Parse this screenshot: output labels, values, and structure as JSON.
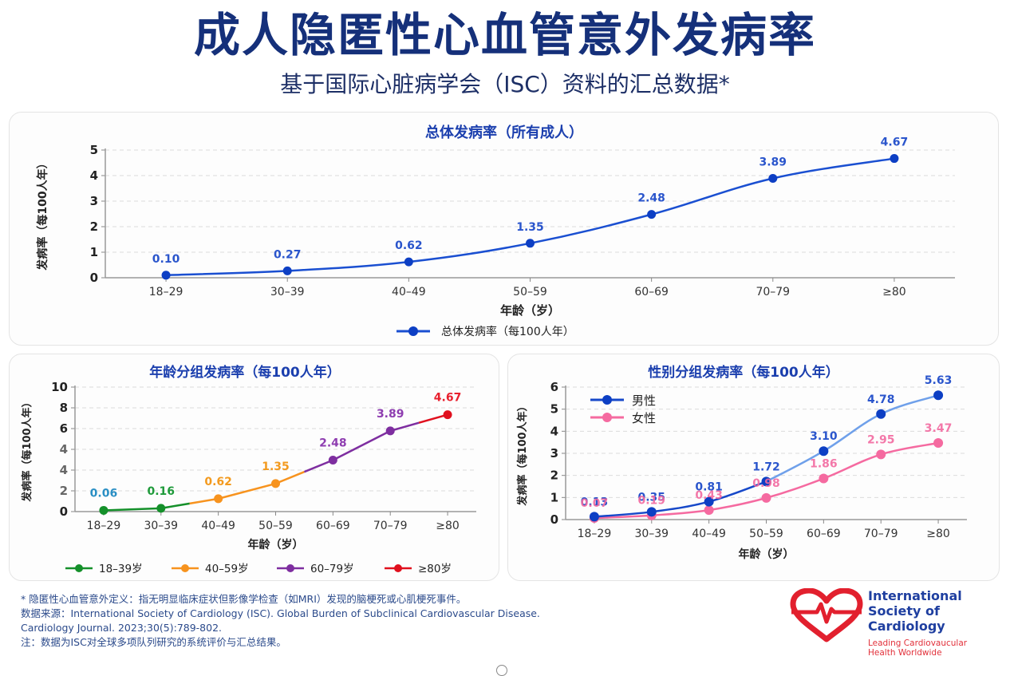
{
  "header": {
    "title": "成人隐匿性心血管意外发病率",
    "subtitle": "基于国际心脏病学会（ISC）资料的汇总数据*"
  },
  "chart_data": [
    {
      "id": "overall",
      "type": "line",
      "title": "总体发病率（所有成人）",
      "xlabel": "年龄（岁）",
      "ylabel": "发病率（每100人年）",
      "categories": [
        "18–29",
        "30–39",
        "40–49",
        "50–59",
        "60–69",
        "70–79",
        "≥80"
      ],
      "yticks": [
        "0",
        "1",
        "2",
        "3",
        "4",
        "5"
      ],
      "ylim": [
        0,
        5
      ],
      "grid": true,
      "legend_position": "bottom-center",
      "series": [
        {
          "name": "总体发病率（每100人年）",
          "color": "#1a4fd1",
          "values": [
            0.1,
            0.27,
            0.62,
            1.35,
            2.48,
            3.89,
            4.67
          ],
          "labels": [
            "0.10",
            "0.27",
            "0.62",
            "1.35",
            "2.48",
            "3.89",
            "4.67"
          ]
        }
      ]
    },
    {
      "id": "age",
      "type": "line",
      "title": "年龄分组发病率（每100人年）",
      "xlabel": "年龄（岁）",
      "ylabel": "发病率（每100人年）",
      "categories": [
        "18–29",
        "30–39",
        "40–49",
        "50–59",
        "60–69",
        "70–79",
        "≥80"
      ],
      "yticks": [
        "0",
        "2",
        "4",
        "4",
        "6",
        "8",
        "10"
      ],
      "ylim": [
        0,
        10
      ],
      "grid": true,
      "legend_position": "bottom",
      "values": [
        0.06,
        0.16,
        0.62,
        1.35,
        2.48,
        3.89,
        4.67
      ],
      "labels": [
        "0.06",
        "0.16",
        "0.62",
        "1.35",
        "2.48",
        "3.89",
        "4.67"
      ],
      "label_colors": [
        "#2a8fc4",
        "#1e9a3a",
        "#f39a1e",
        "#f39a1e",
        "#8e3db0",
        "#8e3db0",
        "#e8202e"
      ],
      "point_colors": [
        "#14902a",
        "#14902a",
        "#f7931e",
        "#f7931e",
        "#7e2ea0",
        "#7e2ea0",
        "#e0101e"
      ],
      "groups": [
        {
          "name": "18–39岁",
          "color": "#14902a"
        },
        {
          "name": "40–59岁",
          "color": "#f7931e"
        },
        {
          "name": "60–79岁",
          "color": "#7e2ea0"
        },
        {
          "name": "≥80岁",
          "color": "#e0101e"
        }
      ]
    },
    {
      "id": "sex",
      "type": "line",
      "title": "性别分组发病率（每100人年）",
      "xlabel": "年龄（岁）",
      "ylabel": "发病率（每100人年）",
      "categories": [
        "18–29",
        "30–39",
        "40–49",
        "50–59",
        "60–69",
        "70–79",
        "≥80"
      ],
      "yticks": [
        "0",
        "1",
        "2",
        "3",
        "4",
        "5",
        "6"
      ],
      "ylim": [
        0,
        6
      ],
      "grid": true,
      "legend_position": "top-left",
      "series": [
        {
          "name": "男性",
          "color": "#1648c9",
          "color_light": "#6fa0ea",
          "values": [
            0.13,
            0.35,
            0.81,
            1.72,
            3.1,
            4.78,
            5.63
          ],
          "labels": [
            "0.13",
            "0.35",
            "0.81",
            "1.72",
            "3.10",
            "4.78",
            "5.63"
          ]
        },
        {
          "name": "女性",
          "color": "#f56aa0",
          "values": [
            0.07,
            0.19,
            0.43,
            0.98,
            1.86,
            2.95,
            3.47
          ],
          "labels": [
            "0.07",
            "0.19",
            "0.43",
            "0.98",
            "1.86",
            "2.95",
            "3.47"
          ]
        }
      ]
    }
  ],
  "footer": {
    "definition": "* 隐匿性心血管意外定义：指无明显临床症状但影像学检查（如MRI）发现的脑梗死或心肌梗死事件。",
    "source_line1": "数据来源：International Society of Cardiology (ISC). Global Burden of Subclinical Cardiovascular Disease.",
    "source_line2": "Cardiology Journal. 2023;30(5):789-802.",
    "note": "注：数据为ISC对全球多项队列研究的系统评价与汇总结果。"
  },
  "logo": {
    "line1": "International",
    "line2": "Society of",
    "line3": "Cardiology",
    "tagline1": "Leading Cardiovaucular",
    "tagline2": "Health Worldwide",
    "color_primary": "#1f3fa0",
    "color_accent": "#e2303a"
  }
}
